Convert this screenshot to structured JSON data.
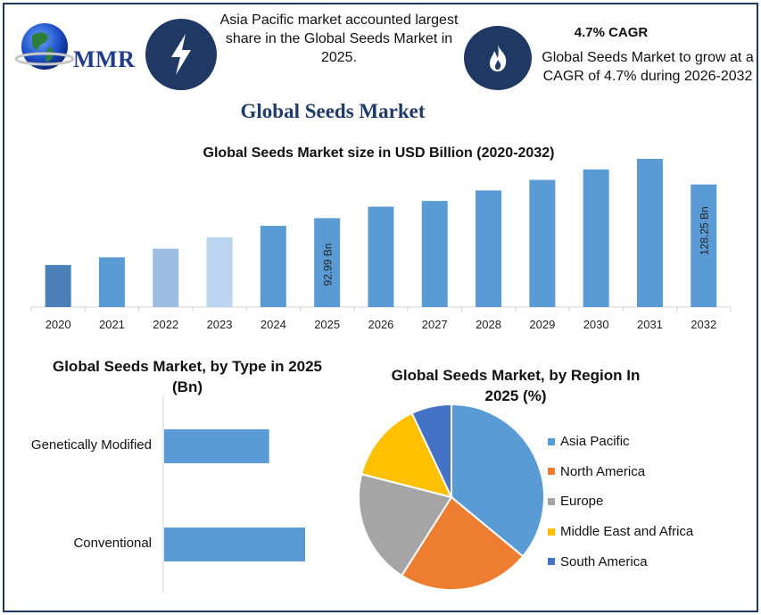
{
  "brand": {
    "logo_text": "MMR"
  },
  "header": {
    "info_left": "Asia Pacific market accounted largest share in the Global Seeds Market in 2025.",
    "cagr_title": "4.7% CAGR",
    "info_right": "Global Seeds Market to grow at a CAGR of 4.7% during 2026-2032",
    "left_icon": "lightning-bolt-icon",
    "right_icon": "flame-icon",
    "badge_color": "#1f3864"
  },
  "main_title": "Global Seeds Market",
  "chart_data": [
    {
      "type": "bar",
      "title": "Global Seeds Market size in USD Billion (2020-2032)",
      "categories": [
        "2020",
        "2021",
        "2022",
        "2023",
        "2024",
        "2025",
        "2026",
        "2027",
        "2028",
        "2029",
        "2030",
        "2031",
        "2032"
      ],
      "values": [
        44,
        52,
        61,
        73,
        85,
        92.99,
        105,
        111,
        122,
        133,
        144,
        155,
        128.25
      ],
      "data_labels": {
        "2025": "92.99 Bn",
        "2032": "128.25 Bn"
      },
      "colors": [
        "#4a7fb8",
        "#5b9bd5",
        "#9dbde2",
        "#bdd4ee",
        "#5b9bd5",
        "#5b9bd5",
        "#5b9bd5",
        "#5b9bd5",
        "#5b9bd5",
        "#5b9bd5",
        "#5b9bd5",
        "#5b9bd5",
        "#5b9bd5"
      ],
      "grid": false
    },
    {
      "type": "bar",
      "orientation": "horizontal",
      "title": "Global Seeds Market, by Type in 2025 (Bn)",
      "categories": [
        "Genetically Modified",
        "Conventional"
      ],
      "values": [
        35,
        47
      ],
      "color": "#5b9bd5"
    },
    {
      "type": "pie",
      "title": "Global Seeds Market, by Region In 2025 (%)",
      "categories": [
        "Asia Pacific",
        "North America",
        "Europe",
        "Middle East and Africa",
        "South America"
      ],
      "values": [
        36,
        23,
        20,
        14,
        7
      ],
      "colors": [
        "#5b9bd5",
        "#ed7d31",
        "#a5a5a5",
        "#ffc000",
        "#4472c4"
      ],
      "legend_position": "right"
    }
  ]
}
